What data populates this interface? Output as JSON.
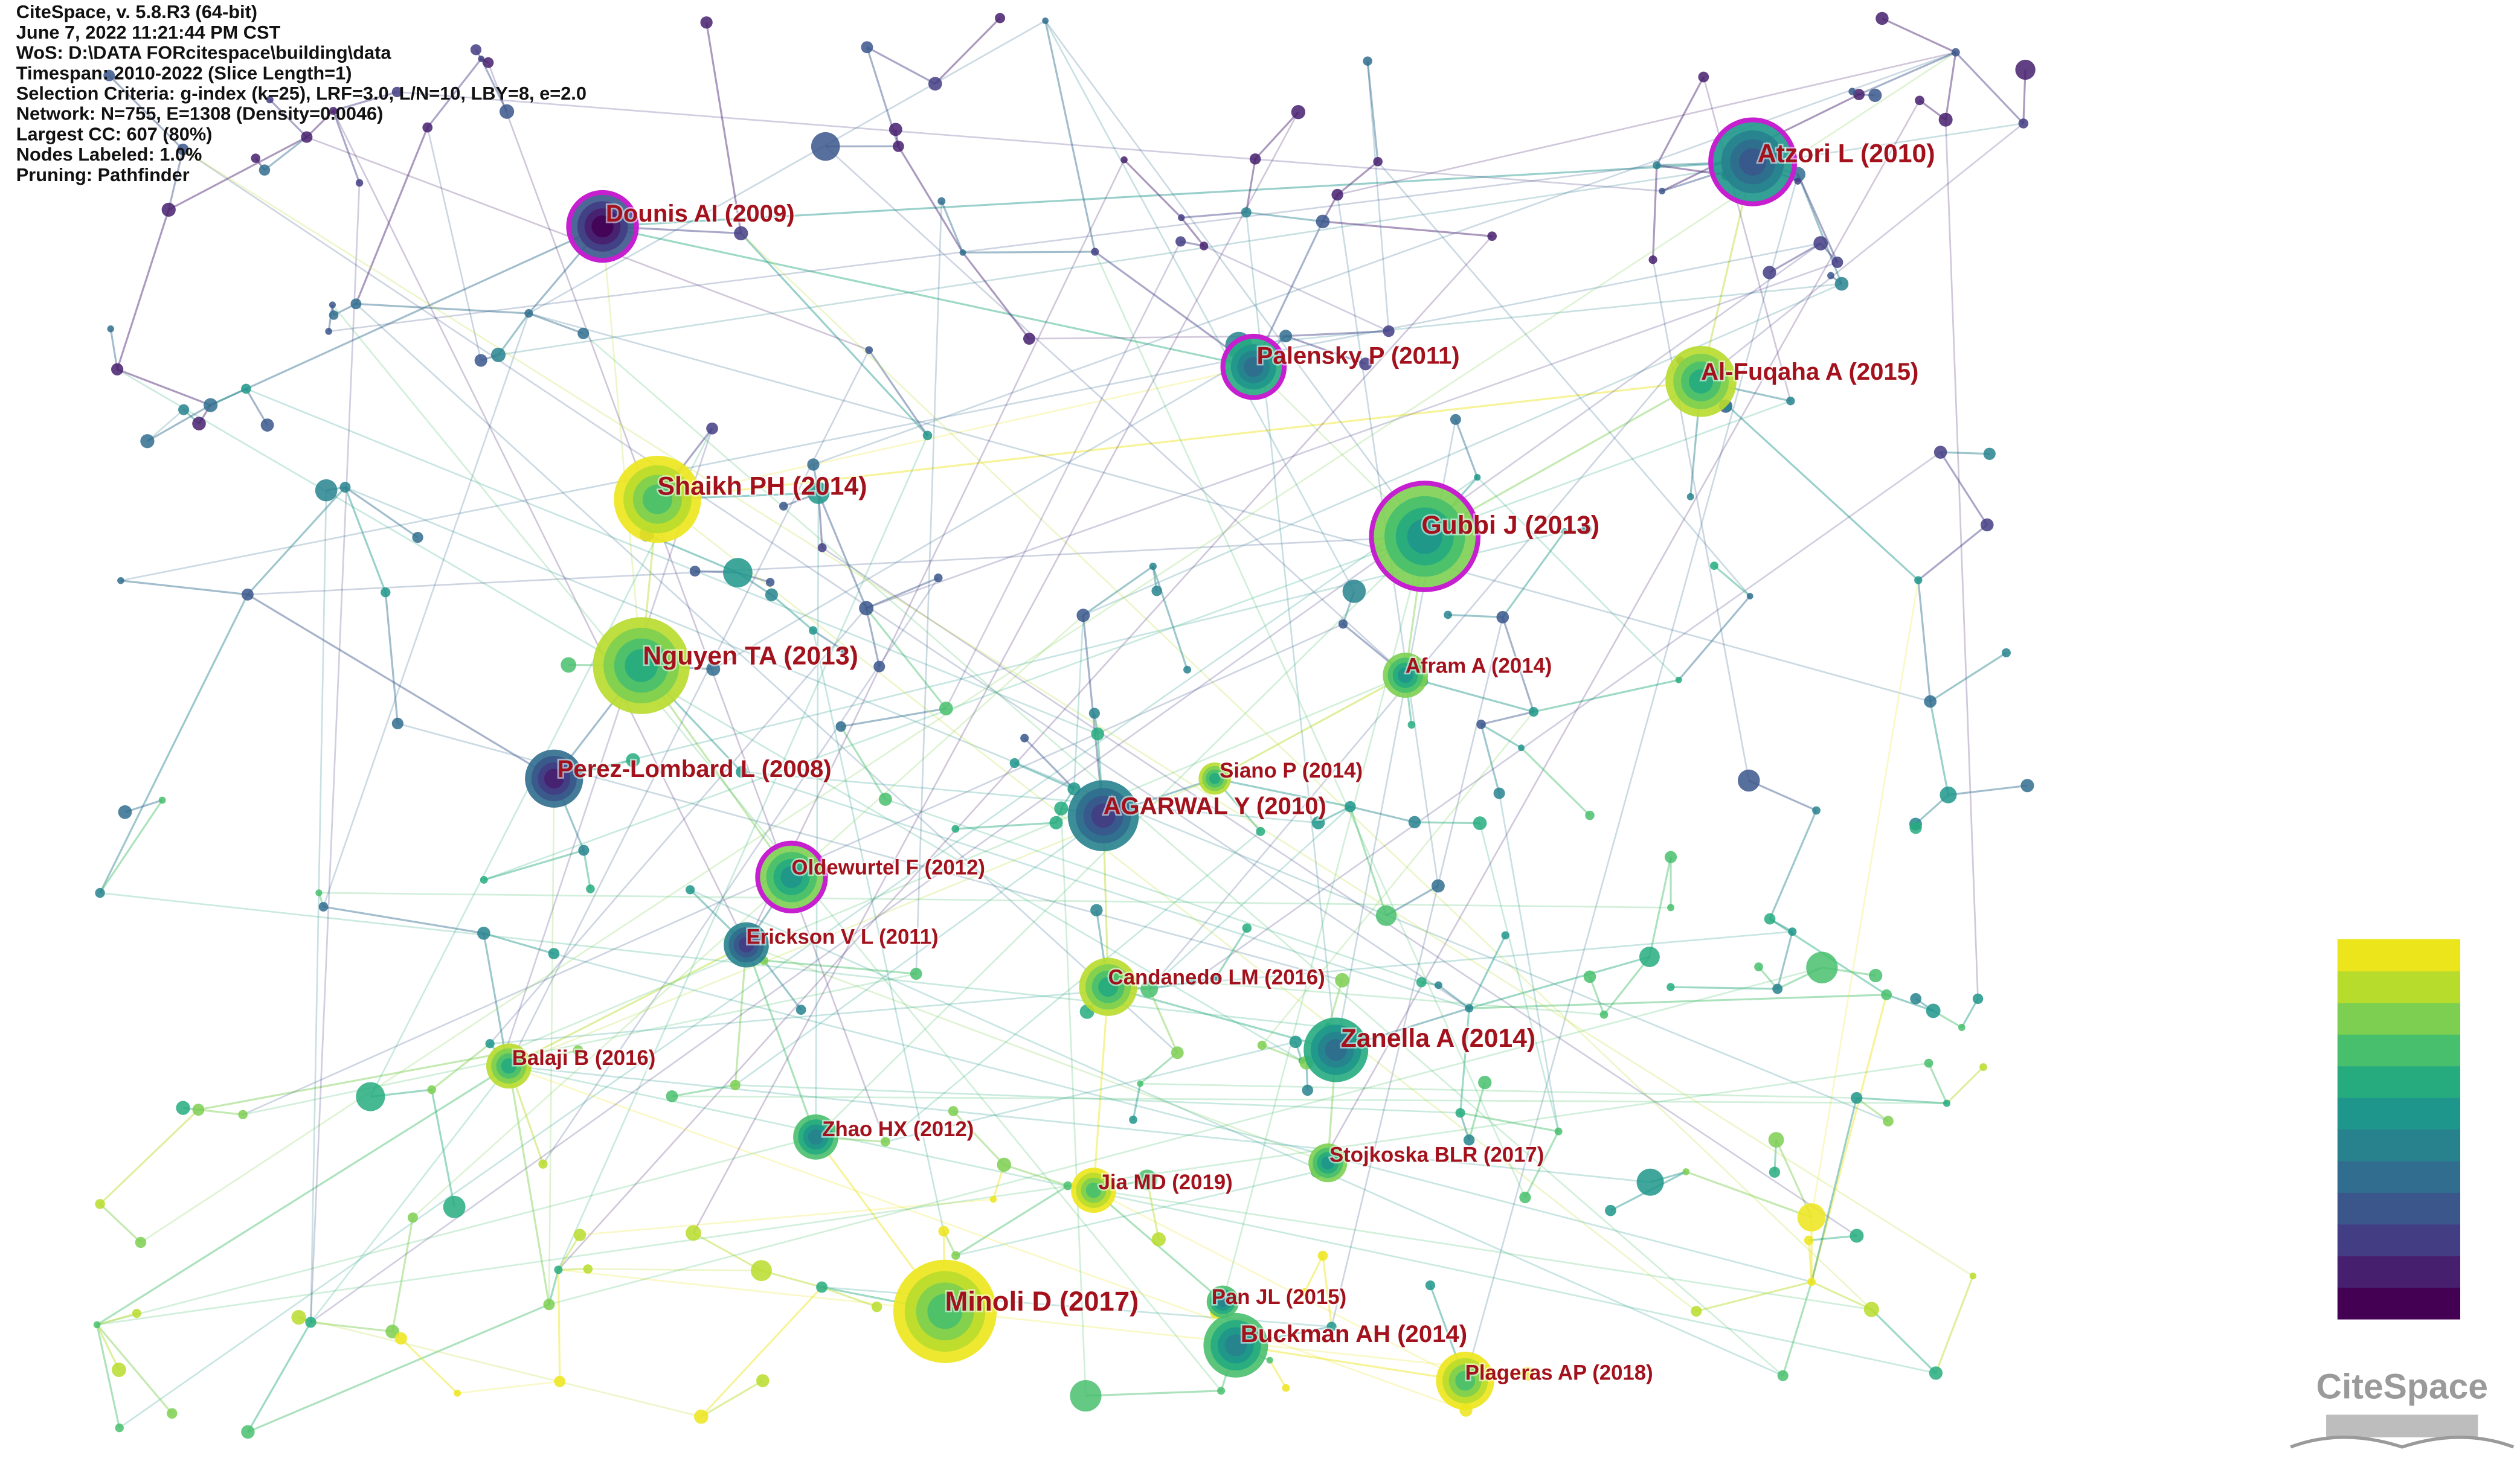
{
  "info": [
    "CiteSpace, v. 5.8.R3 (64-bit)",
    "June 7, 2022 11:21:44 PM CST",
    "WoS: D:\\DATA FORcitespace\\building\\data",
    "Timespan: 2010-2022 (Slice Length=1)",
    "Selection Criteria: g-index (k=25), LRF=3.0, L/N=10, LBY=8, e=2.0",
    "Network: N=755, E=1308 (Density=0.0046)",
    "Largest CC: 607 (80%)",
    "Nodes Labeled: 1.0%",
    "Pruning: Pathfinder"
  ],
  "nodes": [
    {
      "label": "Dounis AI (2009)"
    },
    {
      "label": "Atzori L (2010)"
    },
    {
      "label": "Palensky P (2011)"
    },
    {
      "label": "Al-Fuqaha A (2015)"
    },
    {
      "label": "Shaikh PH (2014)"
    },
    {
      "label": "Gubbi J (2013)"
    },
    {
      "label": "Nguyen TA (2013)"
    },
    {
      "label": "Afram A (2014)"
    },
    {
      "label": "Perez-Lombard L (2008)"
    },
    {
      "label": "Siano P (2014)"
    },
    {
      "label": "AGARWAL Y (2010)"
    },
    {
      "label": "Oldewurtel F (2012)"
    },
    {
      "label": "Erickson V L (2011)"
    },
    {
      "label": "Candanedo LM (2016)"
    },
    {
      "label": "Zanella A (2014)"
    },
    {
      "label": "Balaji B (2016)"
    },
    {
      "label": "Zhao HX (2012)"
    },
    {
      "label": "Stojkoska BLR (2017)"
    },
    {
      "label": "Jia MD (2019)"
    },
    {
      "label": "Minoli D (2017)"
    },
    {
      "label": "Pan JL (2015)"
    },
    {
      "label": "Buckman AH (2014)"
    },
    {
      "label": "Plageras AP (2018)"
    }
  ],
  "logo": "CiteSpace"
}
